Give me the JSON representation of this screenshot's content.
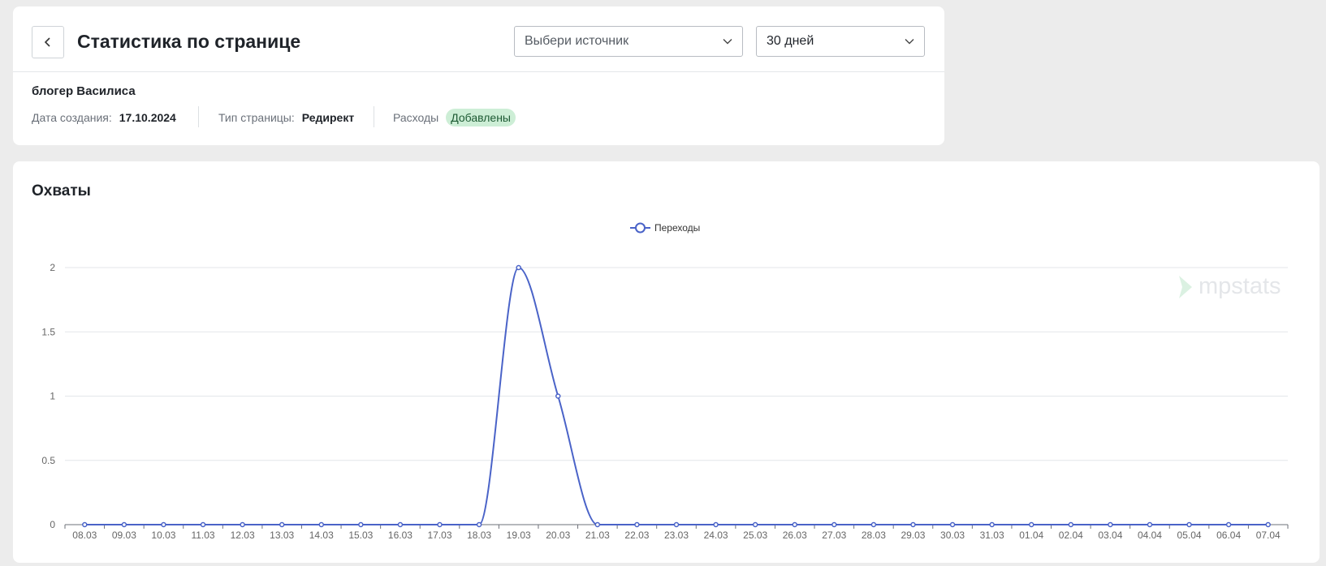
{
  "header": {
    "title": "Статистика по странице",
    "source_select": "Выбери источник",
    "period_select": "30 дней"
  },
  "page_info": {
    "name": "блогер Василиса",
    "created_label": "Дата создания:",
    "created_value": "17.10.2024",
    "type_label": "Тип страницы:",
    "type_value": "Редирект",
    "expenses_label": "Расходы",
    "expenses_value": "Добавлены"
  },
  "watermark": "mpstats",
  "chart_data": {
    "type": "line",
    "title": "Охваты",
    "categories": [
      "08.03",
      "09.03",
      "10.03",
      "11.03",
      "12.03",
      "13.03",
      "14.03",
      "15.03",
      "16.03",
      "17.03",
      "18.03",
      "19.03",
      "20.03",
      "21.03",
      "22.03",
      "23.03",
      "24.03",
      "25.03",
      "26.03",
      "27.03",
      "28.03",
      "29.03",
      "30.03",
      "31.03",
      "01.04",
      "02.04",
      "03.04",
      "04.04",
      "05.04",
      "06.04",
      "07.04"
    ],
    "series": [
      {
        "name": "Переходы",
        "color": "#4a63c8",
        "values": [
          0,
          0,
          0,
          0,
          0,
          0,
          0,
          0,
          0,
          0,
          0,
          2,
          1,
          0,
          0,
          0,
          0,
          0,
          0,
          0,
          0,
          0,
          0,
          0,
          0,
          0,
          0,
          0,
          0,
          0,
          0
        ]
      }
    ],
    "ylim": [
      0,
      2
    ],
    "yticks": [
      0,
      0.5,
      1,
      1.5,
      2
    ],
    "grid": true,
    "legend": "top",
    "smooth": true
  }
}
